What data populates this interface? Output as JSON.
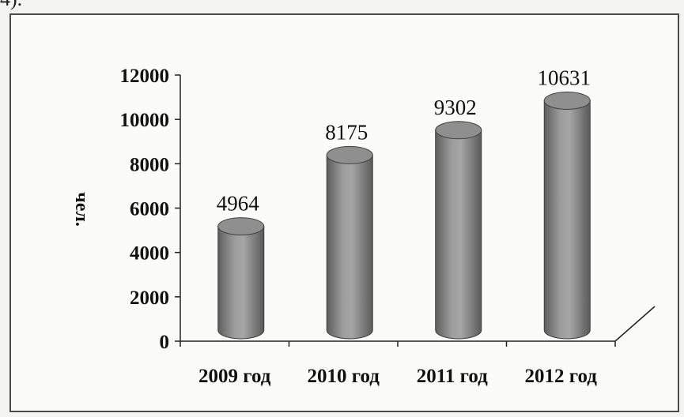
{
  "header_fragment": "4).",
  "chart_data": {
    "type": "bar",
    "style": "3d-cylinder",
    "categories": [
      "2009 год",
      "2010 год",
      "2011 год",
      "2012 год"
    ],
    "values": [
      4964,
      8175,
      9302,
      10631
    ],
    "ylabel": "чел.",
    "ylim": [
      0,
      12000
    ],
    "yticks": [
      0,
      2000,
      4000,
      6000,
      8000,
      10000,
      12000
    ],
    "data_labels": [
      "4964",
      "8175",
      "9302",
      "10631"
    ],
    "grid": false,
    "legend": "none",
    "bar_color": "#8a8a8a"
  }
}
